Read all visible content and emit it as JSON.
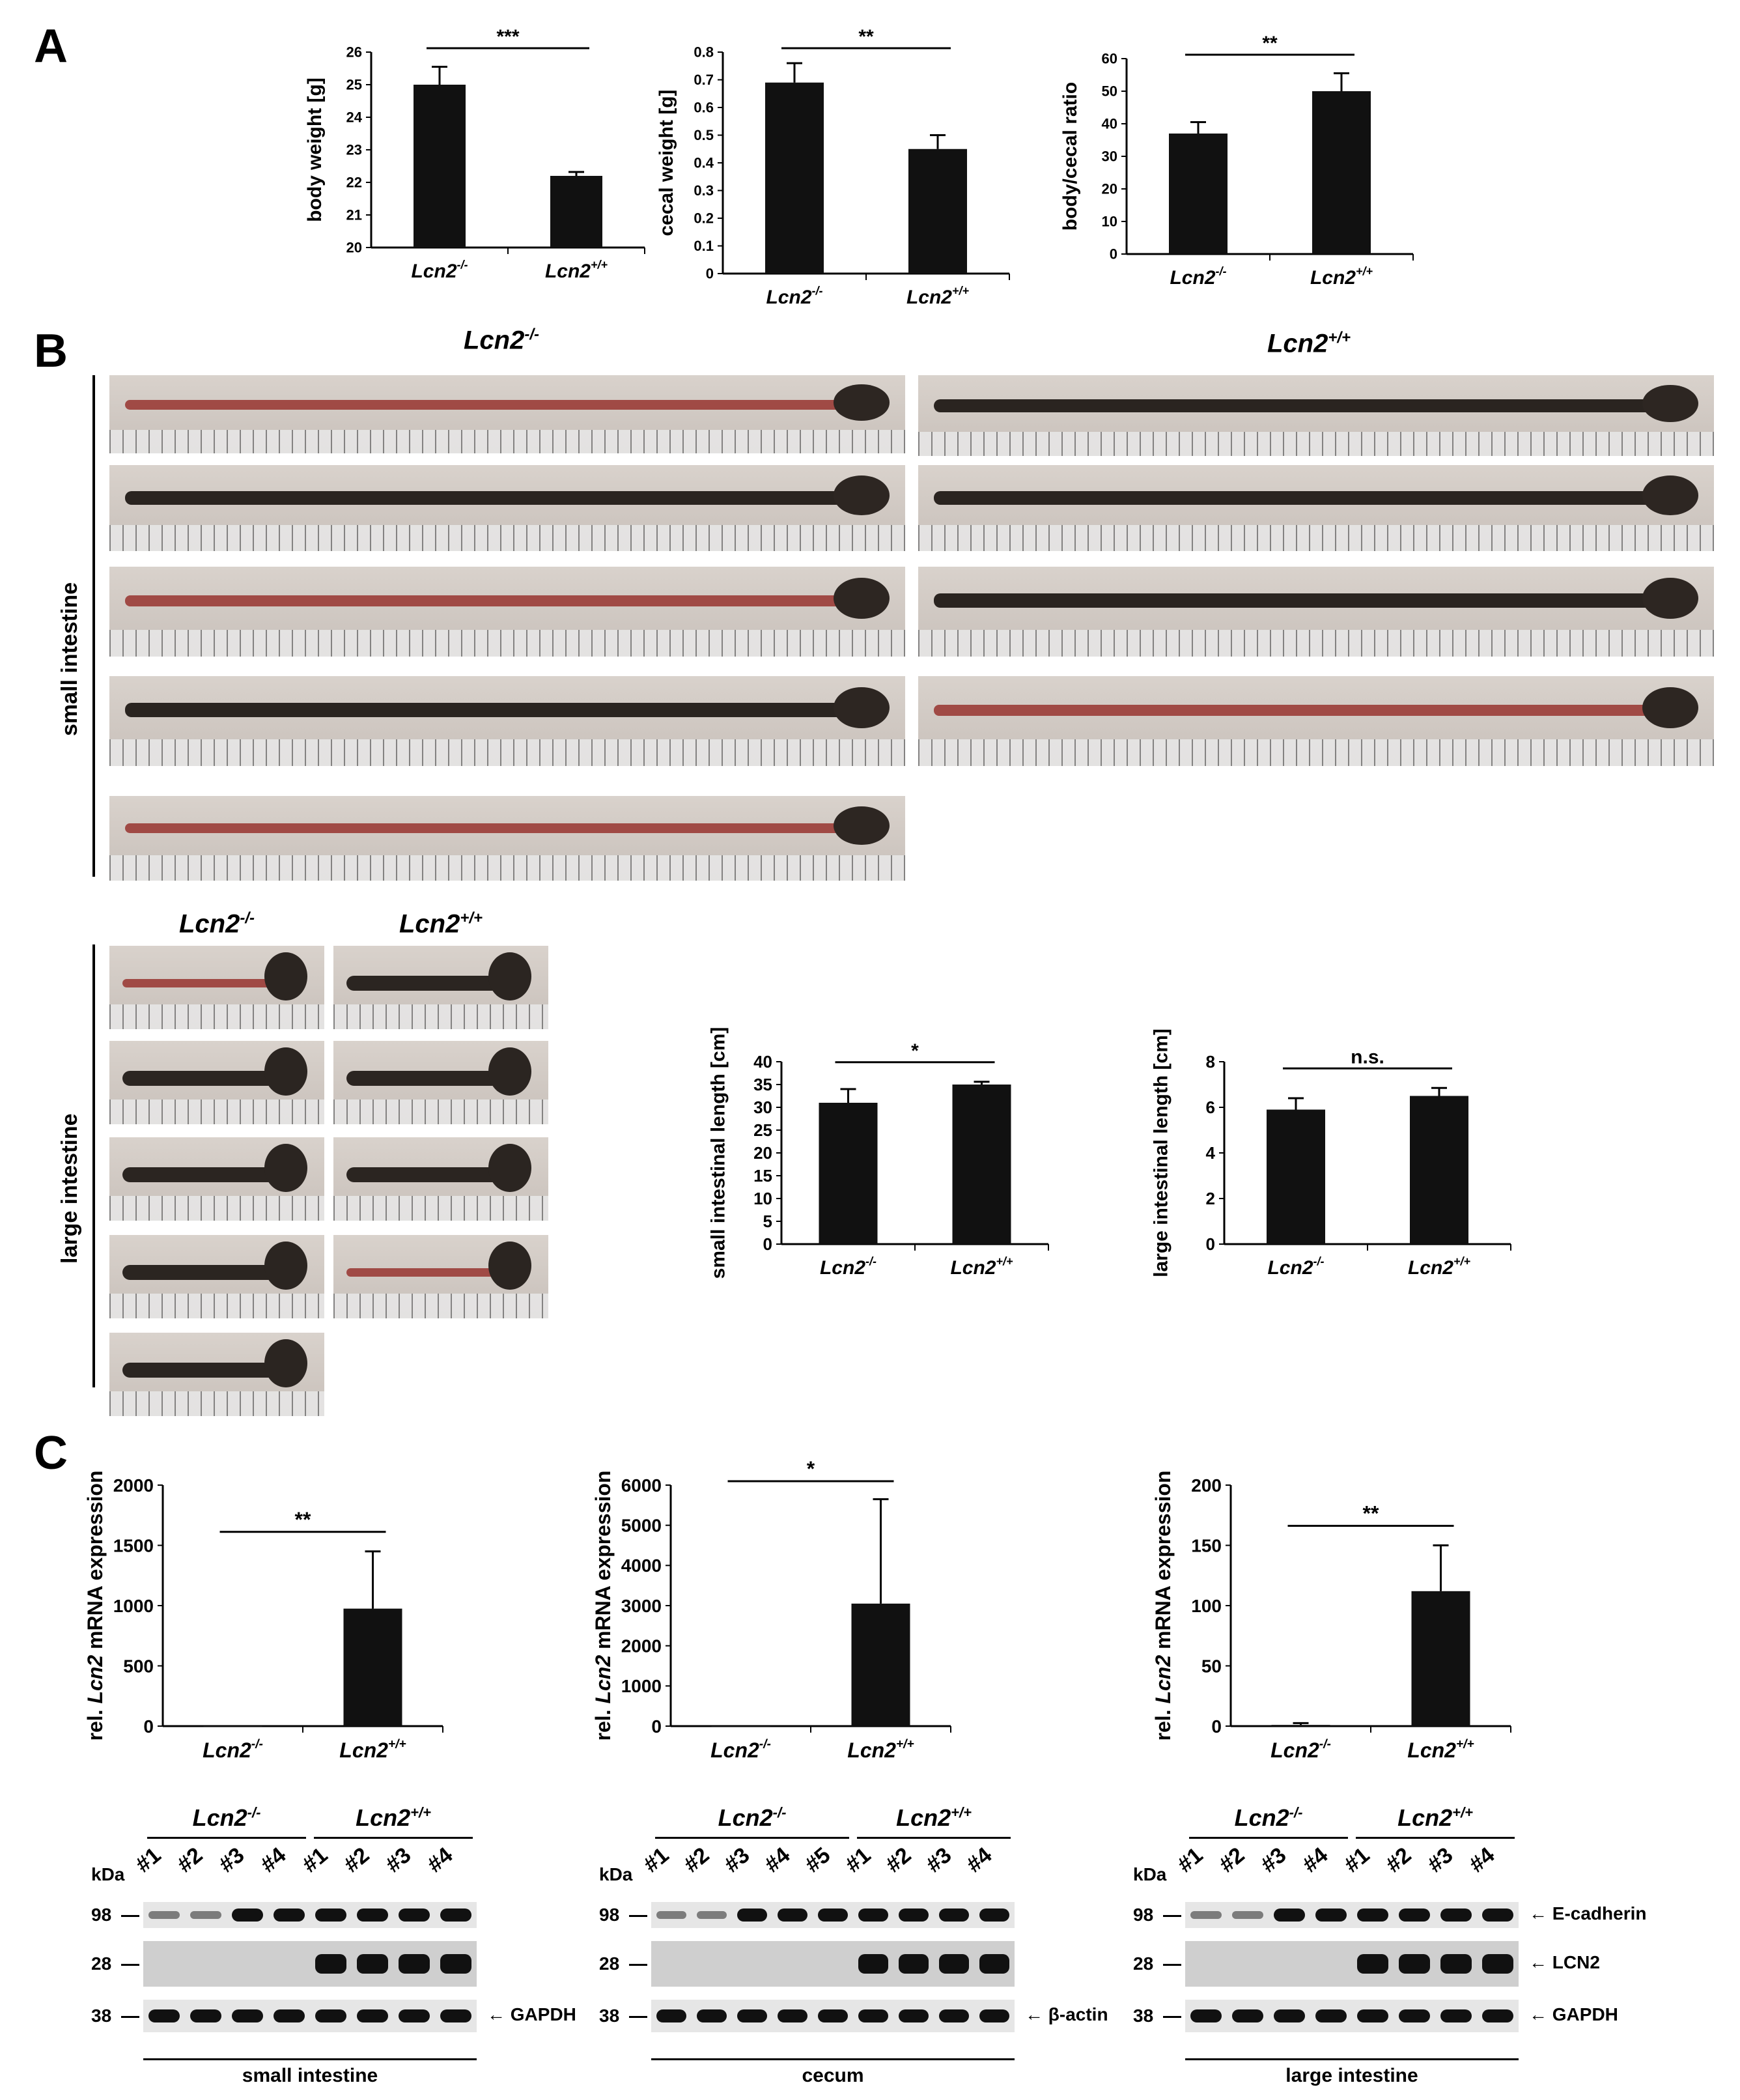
{
  "panels": {
    "A": "A",
    "B": "B",
    "C": "C"
  },
  "genotypes": {
    "ko": "Lcn2",
    "ko_sup": "-/-",
    "wt": "Lcn2",
    "wt_sup": "+/+"
  },
  "section_labels": {
    "small": "small intestine",
    "large": "large intestine"
  },
  "chart_data": [
    {
      "id": "body-weight",
      "type": "bar",
      "categories": [
        "Lcn2-/-",
        "Lcn2+/+"
      ],
      "values": [
        25.0,
        22.2
      ],
      "errors": [
        0.55,
        0.12
      ],
      "ylabel": "body weight [g]",
      "ylim": [
        20,
        26
      ],
      "yticks": [
        "20",
        "21",
        "22",
        "23",
        "24",
        "25",
        "26"
      ],
      "significance": "***"
    },
    {
      "id": "cecal-weight",
      "type": "bar",
      "categories": [
        "Lcn2-/-",
        "Lcn2+/+"
      ],
      "values": [
        0.69,
        0.45
      ],
      "errors": [
        0.07,
        0.05
      ],
      "ylabel": "cecal weight [g]",
      "ylim": [
        0,
        0.8
      ],
      "yticks": [
        "0",
        "0.1",
        "0.2",
        "0.3",
        "0.4",
        "0.5",
        "0.6",
        "0.7",
        "0.8"
      ],
      "significance": "**"
    },
    {
      "id": "body-cecal-ratio",
      "type": "bar",
      "categories": [
        "Lcn2-/-",
        "Lcn2+/+"
      ],
      "values": [
        37,
        50
      ],
      "errors": [
        3.5,
        5.5
      ],
      "ylabel": "body/cecal ratio",
      "ylim": [
        0,
        60
      ],
      "yticks": [
        "0",
        "10",
        "20",
        "30",
        "40",
        "50",
        "60"
      ],
      "significance": "**"
    },
    {
      "id": "small-length",
      "type": "bar",
      "categories": [
        "Lcn2-/-",
        "Lcn2+/+"
      ],
      "values": [
        31,
        35
      ],
      "errors": [
        3,
        0.6
      ],
      "ylabel": "small intestinal length [cm]",
      "ylim": [
        0,
        40
      ],
      "yticks": [
        "0",
        "5",
        "10",
        "15",
        "20",
        "25",
        "30",
        "35",
        "40"
      ],
      "significance": "*"
    },
    {
      "id": "large-length",
      "type": "bar",
      "categories": [
        "Lcn2-/-",
        "Lcn2+/+"
      ],
      "values": [
        5.9,
        6.5
      ],
      "errors": [
        0.5,
        0.35
      ],
      "ylabel": "large intestinal length [cm]",
      "ylim": [
        0,
        8
      ],
      "yticks": [
        "0",
        "2",
        "4",
        "6",
        "8"
      ],
      "significance": "n.s."
    },
    {
      "id": "mrna-small",
      "type": "bar",
      "categories": [
        "Lcn2-/-",
        "Lcn2+/+"
      ],
      "values": [
        1,
        975
      ],
      "errors": [
        0,
        475
      ],
      "ylabel": "rel. Lcn2 mRNA expression",
      "ylim": [
        0,
        2000
      ],
      "yticks": [
        "0",
        "500",
        "1000",
        "1500",
        "2000"
      ],
      "significance": "**"
    },
    {
      "id": "mrna-cecum",
      "type": "bar",
      "categories": [
        "Lcn2-/-",
        "Lcn2+/+"
      ],
      "values": [
        1,
        3050
      ],
      "errors": [
        0,
        2600
      ],
      "ylabel": "rel. Lcn2 mRNA expression",
      "ylim": [
        0,
        6000
      ],
      "yticks": [
        "0",
        "1000",
        "2000",
        "3000",
        "4000",
        "5000",
        "6000"
      ],
      "significance": "*"
    },
    {
      "id": "mrna-large",
      "type": "bar",
      "categories": [
        "Lcn2-/-",
        "Lcn2+/+"
      ],
      "values": [
        1,
        112
      ],
      "errors": [
        1.5,
        38
      ],
      "ylabel": "rel. Lcn2 mRNA expression",
      "ylim": [
        0,
        200
      ],
      "yticks": [
        "0",
        "50",
        "100",
        "150",
        "200"
      ],
      "significance": "**"
    }
  ],
  "blots": {
    "kda_label": "kDa",
    "kda_values": [
      "98",
      "28",
      "38"
    ],
    "small": {
      "lanes": [
        "#1",
        "#2",
        "#3",
        "#4",
        "#1",
        "#2",
        "#3",
        "#4"
      ],
      "arrow_label": "GAPDH",
      "footer": "small intestine"
    },
    "cecum": {
      "lanes": [
        "#1",
        "#2",
        "#3",
        "#4",
        "#5",
        "#1",
        "#2",
        "#3",
        "#4"
      ],
      "arrow_label": "β-actin",
      "footer": "cecum"
    },
    "large": {
      "lanes": [
        "#1",
        "#2",
        "#3",
        "#4",
        "#1",
        "#2",
        "#3",
        "#4"
      ],
      "arrow_labels": [
        "E-cadherin",
        "LCN2",
        "GAPDH"
      ],
      "footer": "large intestine"
    }
  }
}
